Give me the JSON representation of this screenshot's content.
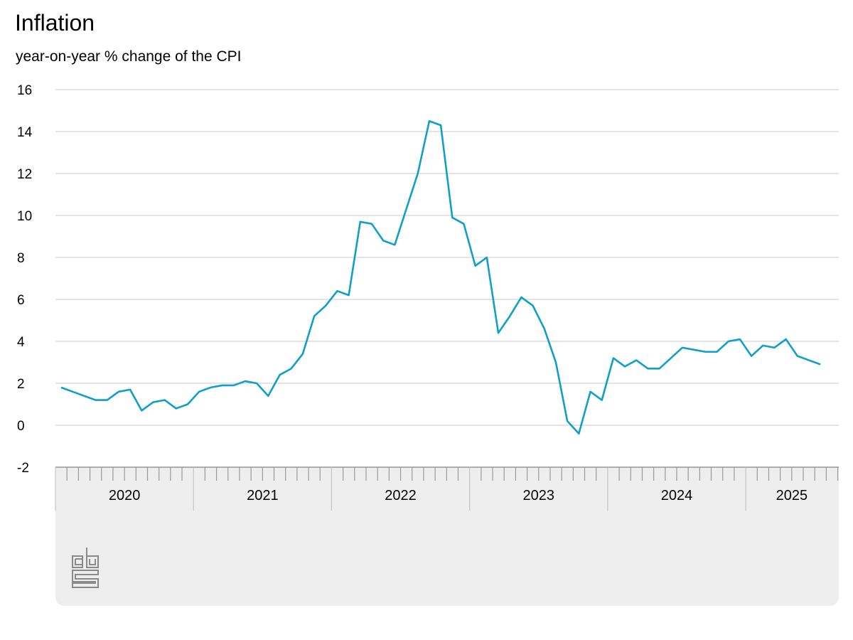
{
  "title": "Inflation",
  "subtitle": "year-on-year % change of the CPI",
  "colors": {
    "line": "#0f9fc7",
    "grid": "#c8c8c8",
    "panel": "#eeeeee",
    "axis": "#999999",
    "logo": "#8a8a8a"
  },
  "logo": {
    "icon": "cbs-logo-icon"
  },
  "chart_data": {
    "type": "line",
    "title": "Inflation",
    "subtitle": "year-on-year % change of the CPI",
    "xlabel": "",
    "ylabel": "",
    "ylim": [
      -2,
      16
    ],
    "yticks": [
      16,
      14,
      12,
      10,
      8,
      6,
      4,
      2,
      0,
      -2
    ],
    "grid": true,
    "year_labels": [
      "2020",
      "2021",
      "2022",
      "2023",
      "2024",
      "2025"
    ],
    "series": [
      {
        "name": "",
        "x": [
          "2020-01",
          "2020-02",
          "2020-03",
          "2020-04",
          "2020-05",
          "2020-06",
          "2020-07",
          "2020-08",
          "2020-09",
          "2020-10",
          "2020-11",
          "2020-12",
          "2021-01",
          "2021-02",
          "2021-03",
          "2021-04",
          "2021-05",
          "2021-06",
          "2021-07",
          "2021-08",
          "2021-09",
          "2021-10",
          "2021-11",
          "2021-12",
          "2022-01",
          "2022-02",
          "2022-03",
          "2022-04",
          "2022-05",
          "2022-06",
          "2022-07",
          "2022-08",
          "2022-09",
          "2022-10",
          "2022-11",
          "2022-12",
          "2023-01",
          "2023-02",
          "2023-03",
          "2023-04",
          "2023-05",
          "2023-06",
          "2023-07",
          "2023-08",
          "2023-09",
          "2023-10",
          "2023-11",
          "2023-12",
          "2024-01",
          "2024-02",
          "2024-03",
          "2024-04",
          "2024-05",
          "2024-06",
          "2024-07",
          "2024-08",
          "2024-09",
          "2024-10",
          "2024-11",
          "2024-12",
          "2025-01",
          "2025-02",
          "2025-03",
          "2025-04",
          "2025-05",
          "2025-06",
          "2025-07"
        ],
        "values": [
          1.8,
          1.6,
          1.4,
          1.2,
          1.2,
          1.6,
          1.7,
          0.7,
          1.1,
          1.2,
          0.8,
          1.0,
          1.6,
          1.8,
          1.9,
          1.9,
          2.1,
          2.0,
          1.4,
          2.4,
          2.7,
          3.4,
          5.2,
          5.7,
          6.4,
          6.2,
          9.7,
          9.6,
          8.8,
          8.6,
          10.3,
          12.0,
          14.5,
          14.3,
          9.9,
          9.6,
          7.6,
          8.0,
          4.4,
          5.2,
          6.1,
          5.7,
          4.6,
          3.0,
          0.2,
          -0.4,
          1.6,
          1.2,
          3.2,
          2.8,
          3.1,
          2.7,
          2.7,
          3.2,
          3.7,
          3.6,
          3.5,
          3.5,
          4.0,
          4.1,
          3.3,
          3.8,
          3.7,
          4.1,
          3.3,
          3.1,
          2.9
        ]
      }
    ]
  }
}
